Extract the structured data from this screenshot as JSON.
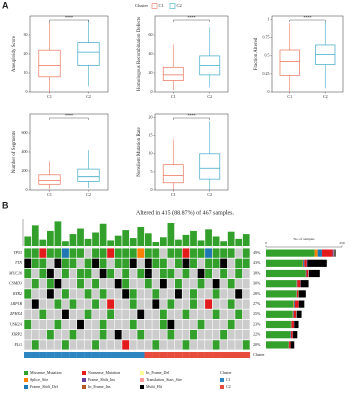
{
  "panels": [
    "A",
    "B"
  ],
  "legend": {
    "title": "Cluster",
    "entries": [
      "C1",
      "C2"
    ],
    "colors": [
      "#E8735A",
      "#3FA9C9"
    ]
  },
  "chart_data": [
    {
      "type": "box",
      "ylabel": "Aneuploidy Score",
      "categories": [
        "C1",
        "C2"
      ],
      "colors": [
        "#E8735A",
        "#3FA9C9"
      ],
      "boxes": [
        {
          "min": 0,
          "q1": 8,
          "median": 14,
          "q3": 22,
          "max": 37
        },
        {
          "min": 3,
          "q1": 14,
          "median": 21,
          "q3": 26,
          "max": 38
        }
      ],
      "ylim": [
        0,
        40
      ],
      "yticks": [
        0,
        10,
        20,
        30
      ],
      "annotation": "****"
    },
    {
      "type": "box",
      "ylabel": "Homologous Recombination Defects",
      "categories": [
        "C1",
        "C2"
      ],
      "colors": [
        "#E8735A",
        "#3FA9C9"
      ],
      "boxes": [
        {
          "min": 2,
          "q1": 12,
          "median": 18,
          "q3": 26,
          "max": 50
        },
        {
          "min": 5,
          "q1": 18,
          "median": 28,
          "q3": 38,
          "max": 68
        }
      ],
      "ylim": [
        0,
        80
      ],
      "yticks": [
        0,
        20,
        40,
        60
      ],
      "annotation": "****"
    },
    {
      "type": "box",
      "ylabel": "Fraction Altered",
      "categories": [
        "C1",
        "C2"
      ],
      "colors": [
        "#E8735A",
        "#3FA9C9"
      ],
      "boxes": [
        {
          "min": 0,
          "q1": 0.23,
          "median": 0.42,
          "q3": 0.58,
          "max": 0.95
        },
        {
          "min": 0.05,
          "q1": 0.38,
          "median": 0.52,
          "q3": 0.65,
          "max": 0.98
        }
      ],
      "ylim": [
        0,
        1.05
      ],
      "yticks": [
        0,
        0.25,
        0.5,
        0.75,
        1
      ],
      "annotation": "****"
    },
    {
      "type": "box",
      "ylabel": "Number of Segments",
      "categories": [
        "C1",
        "C2"
      ],
      "colors": [
        "#E8735A",
        "#3FA9C9"
      ],
      "boxes": [
        {
          "min": 10,
          "q1": 60,
          "median": 100,
          "q3": 160,
          "max": 300
        },
        {
          "min": 20,
          "q1": 90,
          "median": 140,
          "q3": 220,
          "max": 420
        }
      ],
      "ylim": [
        0,
        800
      ],
      "yticks": [
        0,
        200,
        400,
        600
      ],
      "annotation": "****"
    },
    {
      "type": "box",
      "ylabel": "Nonsilent Mutation Rate",
      "categories": [
        "C1",
        "C2"
      ],
      "colors": [
        "#E8735A",
        "#3FA9C9"
      ],
      "boxes": [
        {
          "min": 0,
          "q1": 2,
          "median": 4,
          "q3": 7,
          "max": 14
        },
        {
          "min": 0,
          "q1": 3,
          "median": 6,
          "q3": 10,
          "max": 19
        }
      ],
      "ylim": [
        0,
        21
      ],
      "yticks": [
        0,
        5,
        10,
        15,
        20
      ],
      "annotation": "****"
    },
    {
      "type": "oncoplot",
      "title": "Altered in 415 (88.87%) of 467 samples.",
      "genes": [
        "TP53",
        "TTN",
        "MUC16",
        "CSMD3",
        "RYR2",
        "LRP1B",
        "ZFHX4",
        "USH2A",
        "XIRP2",
        "FLG"
      ],
      "values": [
        49,
        43,
        38,
        30,
        28,
        27,
        25,
        23,
        22,
        20
      ],
      "value_labels": [
        "49%",
        "43%",
        "38%",
        "30%",
        "28%",
        "27%",
        "25%",
        "23%",
        "22%",
        "20%"
      ],
      "variant_classes": [
        "Missense_Mutation",
        "Splice_Site",
        "Frame_Shift_Del",
        "Nonsense_Mutation",
        "Frame_Shift_Ins",
        "In_Frame_Ins",
        "In_Frame_Del",
        "Translation_Start_Site",
        "Multi_Hit"
      ],
      "variant_colors": [
        "#33A02C",
        "#FF7F00",
        "#1F78B4",
        "#E31A1C",
        "#6A3D9A",
        "#B15928",
        "#FFFF99",
        "#FB9A99",
        "#000000"
      ],
      "empty_color": "#CCCCCC",
      "matrix": [
        [
          1,
          1,
          4,
          1,
          1,
          3,
          1,
          1,
          0,
          1,
          1,
          4,
          1,
          1,
          1,
          2,
          1,
          1,
          0,
          1,
          1,
          4,
          1,
          1,
          3,
          1,
          1,
          1,
          0,
          1
        ],
        [
          9,
          1,
          1,
          0,
          9,
          1,
          1,
          0,
          1,
          9,
          1,
          0,
          1,
          1,
          9,
          0,
          9,
          1,
          1,
          0,
          1,
          9,
          1,
          0,
          1,
          1,
          9,
          0,
          1,
          1
        ],
        [
          1,
          0,
          1,
          9,
          0,
          1,
          0,
          1,
          1,
          0,
          9,
          1,
          0,
          1,
          0,
          1,
          9,
          0,
          1,
          1,
          0,
          1,
          0,
          9,
          1,
          0,
          1,
          0,
          1,
          0
        ],
        [
          0,
          1,
          0,
          1,
          9,
          0,
          0,
          1,
          0,
          1,
          0,
          0,
          9,
          1,
          0,
          0,
          1,
          0,
          9,
          0,
          1,
          0,
          0,
          1,
          0,
          9,
          0,
          1,
          0,
          0
        ],
        [
          1,
          0,
          0,
          9,
          0,
          1,
          0,
          0,
          1,
          0,
          1,
          0,
          0,
          9,
          1,
          0,
          0,
          1,
          0,
          0,
          9,
          0,
          1,
          0,
          0,
          1,
          0,
          0,
          9,
          0
        ],
        [
          0,
          9,
          0,
          0,
          1,
          0,
          1,
          0,
          0,
          1,
          0,
          4,
          0,
          0,
          1,
          0,
          0,
          9,
          0,
          1,
          0,
          0,
          1,
          0,
          4,
          0,
          0,
          1,
          0,
          0
        ],
        [
          0,
          0,
          1,
          0,
          0,
          9,
          0,
          0,
          1,
          0,
          0,
          1,
          0,
          0,
          0,
          9,
          0,
          0,
          1,
          0,
          0,
          1,
          0,
          0,
          0,
          1,
          0,
          0,
          1,
          0
        ],
        [
          1,
          0,
          0,
          0,
          1,
          0,
          0,
          9,
          0,
          0,
          1,
          0,
          0,
          0,
          1,
          0,
          0,
          0,
          1,
          9,
          0,
          0,
          0,
          1,
          0,
          0,
          0,
          1,
          0,
          0
        ],
        [
          0,
          0,
          0,
          1,
          0,
          0,
          1,
          0,
          0,
          0,
          1,
          0,
          9,
          0,
          0,
          1,
          0,
          0,
          0,
          1,
          0,
          0,
          1,
          0,
          0,
          0,
          1,
          0,
          0,
          0
        ],
        [
          0,
          1,
          0,
          0,
          0,
          1,
          0,
          0,
          0,
          1,
          0,
          0,
          0,
          4,
          0,
          0,
          0,
          1,
          0,
          0,
          0,
          1,
          0,
          0,
          0,
          1,
          0,
          0,
          0,
          1
        ]
      ],
      "tmb": [
        1200,
        2600,
        800,
        1900,
        3100,
        600,
        1500,
        2200,
        900,
        1700,
        2800,
        700,
        1300,
        2000,
        1000,
        2400,
        1600,
        500,
        1100,
        2900,
        800,
        1400,
        1900,
        700,
        2100,
        1200,
        600,
        1800,
        900,
        1500
      ],
      "tmb_ylim": [
        0,
        3400
      ],
      "tmb_color": "#33A02C",
      "side_counts": [
        [
          160,
          10,
          14,
          35,
          4,
          0,
          2,
          0,
          4
        ],
        [
          120,
          2,
          4,
          8,
          2,
          0,
          0,
          0,
          64
        ],
        [
          130,
          1,
          2,
          6,
          1,
          0,
          1,
          0,
          36
        ],
        [
          100,
          1,
          2,
          10,
          1,
          0,
          0,
          0,
          26
        ],
        [
          100,
          1,
          1,
          4,
          0,
          0,
          1,
          0,
          24
        ],
        [
          90,
          2,
          3,
          12,
          1,
          0,
          0,
          0,
          18
        ],
        [
          88,
          1,
          2,
          8,
          1,
          0,
          1,
          0,
          16
        ],
        [
          82,
          1,
          1,
          8,
          1,
          0,
          0,
          0,
          14
        ],
        [
          80,
          0,
          2,
          6,
          1,
          0,
          0,
          0,
          14
        ],
        [
          74,
          1,
          1,
          5,
          0,
          0,
          0,
          0,
          12
        ]
      ],
      "side_label": "No. of samples",
      "xlim": [
        0,
        250
      ],
      "xticks": [
        0,
        250
      ],
      "annotation_label": "Cluster",
      "cluster_names": [
        "C1",
        "C2"
      ],
      "cluster_colors": [
        "#2E86C1",
        "#E74C3C"
      ],
      "clusters": [
        1,
        1,
        1,
        1,
        1,
        1,
        1,
        1,
        1,
        1,
        1,
        1,
        1,
        1,
        1,
        1,
        2,
        2,
        2,
        2,
        2,
        2,
        2,
        2,
        2,
        2,
        2,
        2,
        2,
        2
      ]
    }
  ]
}
